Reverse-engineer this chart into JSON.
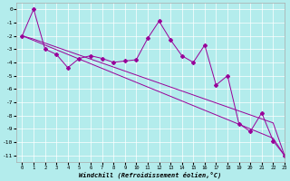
{
  "xlabel": "Windchill (Refroidissement éolien,°C)",
  "bg_color": "#b3ecec",
  "line_color": "#990099",
  "x_data": [
    0,
    1,
    2,
    3,
    4,
    5,
    6,
    7,
    8,
    9,
    10,
    11,
    12,
    13,
    14,
    15,
    16,
    17,
    18,
    19,
    20,
    21,
    22,
    23
  ],
  "y_main": [
    -2,
    0,
    -3,
    -3.4,
    -4.4,
    -3.7,
    -3.5,
    -3.7,
    -4.0,
    -3.9,
    -3.8,
    -2.2,
    -0.9,
    -2.3,
    -3.5,
    -4.0,
    -2.7,
    -5.7,
    -5.0,
    -8.6,
    -9.2,
    -7.8,
    -9.9,
    -11.0
  ],
  "y_line1": [
    -2.0,
    -2.35,
    -2.7,
    -3.05,
    -3.4,
    -3.75,
    -4.1,
    -4.45,
    -4.8,
    -5.15,
    -5.5,
    -5.85,
    -6.2,
    -6.55,
    -6.9,
    -7.25,
    -7.6,
    -7.95,
    -8.3,
    -8.65,
    -9.0,
    -9.35,
    -9.7,
    -11.0
  ],
  "y_line2": [
    -2.0,
    -2.25,
    -2.55,
    -2.85,
    -3.15,
    -3.45,
    -3.75,
    -4.05,
    -4.35,
    -4.65,
    -4.95,
    -5.25,
    -5.55,
    -5.85,
    -6.15,
    -6.45,
    -6.75,
    -7.05,
    -7.35,
    -7.65,
    -7.95,
    -8.25,
    -8.55,
    -11.0
  ],
  "ylim": [
    -11.5,
    0.5
  ],
  "xlim": [
    -0.5,
    23
  ],
  "yticks": [
    0,
    -1,
    -2,
    -3,
    -4,
    -5,
    -6,
    -7,
    -8,
    -9,
    -10,
    -11
  ],
  "xticks": [
    0,
    1,
    2,
    3,
    4,
    5,
    6,
    7,
    8,
    9,
    10,
    11,
    12,
    13,
    14,
    15,
    16,
    17,
    18,
    19,
    20,
    21,
    22,
    23
  ]
}
